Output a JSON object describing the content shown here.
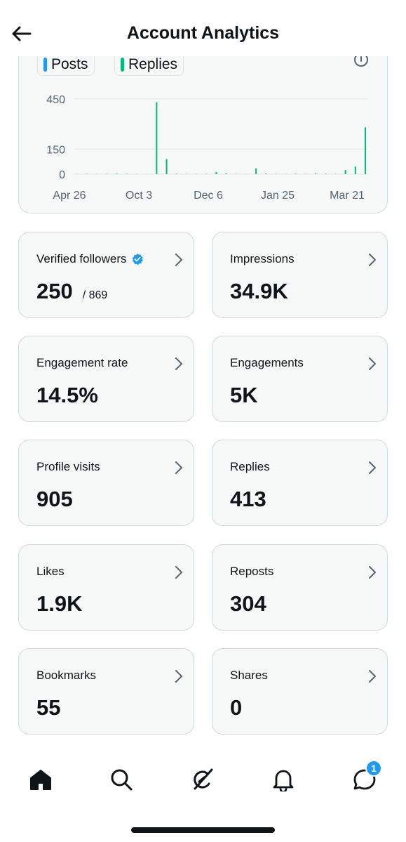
{
  "header": {
    "title": "Account Analytics"
  },
  "chart": {
    "legend": [
      {
        "label": "Posts",
        "color": "#1d9bf0"
      },
      {
        "label": "Replies",
        "color": "#00ba7c"
      }
    ]
  },
  "chart_data": {
    "type": "bar",
    "title": "",
    "xlabel": "",
    "ylabel": "",
    "y_ticks": [
      "450",
      "150",
      "0"
    ],
    "y_tick_values": [
      450,
      150,
      0
    ],
    "x_ticks": [
      "Apr 26",
      "Oct 3",
      "Dec 6",
      "Jan 25",
      "Mar 21"
    ],
    "ylim": [
      0,
      470
    ],
    "grid": true,
    "series": [
      {
        "name": "Posts",
        "color": "#1d9bf0",
        "values": [
          0,
          0,
          0,
          0,
          0,
          0,
          0,
          0,
          0,
          0,
          0,
          0,
          0,
          0,
          0,
          0,
          0,
          0,
          0,
          0,
          0,
          0,
          0,
          0,
          0,
          0,
          0,
          0,
          0,
          0
        ]
      },
      {
        "name": "Replies",
        "color": "#00ba7c",
        "values": [
          1,
          2,
          1,
          2,
          3,
          2,
          1,
          1,
          430,
          90,
          3,
          2,
          1,
          2,
          12,
          5,
          2,
          1,
          35,
          4,
          2,
          1,
          3,
          2,
          5,
          3,
          2,
          25,
          45,
          280
        ]
      }
    ]
  },
  "stats": [
    {
      "label": "Verified followers",
      "value": "250",
      "sub": "/ 869",
      "verified": true
    },
    {
      "label": "Impressions",
      "value": "34.9K"
    },
    {
      "label": "Engagement rate",
      "value": "14.5%"
    },
    {
      "label": "Engagements",
      "value": "5K"
    },
    {
      "label": "Profile visits",
      "value": "905"
    },
    {
      "label": "Replies",
      "value": "413"
    },
    {
      "label": "Likes",
      "value": "1.9K"
    },
    {
      "label": "Reposts",
      "value": "304"
    },
    {
      "label": "Bookmarks",
      "value": "55"
    },
    {
      "label": "Shares",
      "value": "0"
    }
  ],
  "tabbar": {
    "items": [
      {
        "icon": "home-icon"
      },
      {
        "icon": "search-icon"
      },
      {
        "icon": "grok-icon"
      },
      {
        "icon": "bell-icon"
      },
      {
        "icon": "messages-icon",
        "badge": "1"
      }
    ]
  },
  "colors": {
    "accent": "#1d9bf0",
    "replies": "#00ba7c",
    "border": "#cfd9de",
    "card": "#f7f9f9"
  }
}
